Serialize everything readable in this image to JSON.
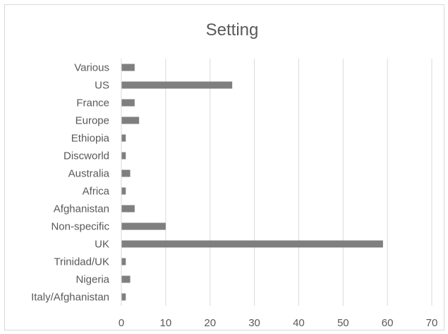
{
  "chart_data": {
    "type": "bar",
    "orientation": "horizontal",
    "title": "Setting",
    "categories": [
      "Various",
      "US",
      "France",
      "Europe",
      "Ethiopia",
      "Discworld",
      "Australia",
      "Africa",
      "Afghanistan",
      "Non-specific",
      "UK",
      "Trinidad/UK",
      "Nigeria",
      "Italy/Afghanistan"
    ],
    "values": [
      3,
      25,
      3,
      4,
      1,
      1,
      2,
      1,
      3,
      10,
      59,
      1,
      2,
      1
    ],
    "xlim": [
      0,
      70
    ],
    "xticks": [
      0,
      10,
      20,
      30,
      40,
      50,
      60,
      70
    ],
    "grid": "vertical",
    "bar_color": "#7f7f7f",
    "legend": "none"
  }
}
